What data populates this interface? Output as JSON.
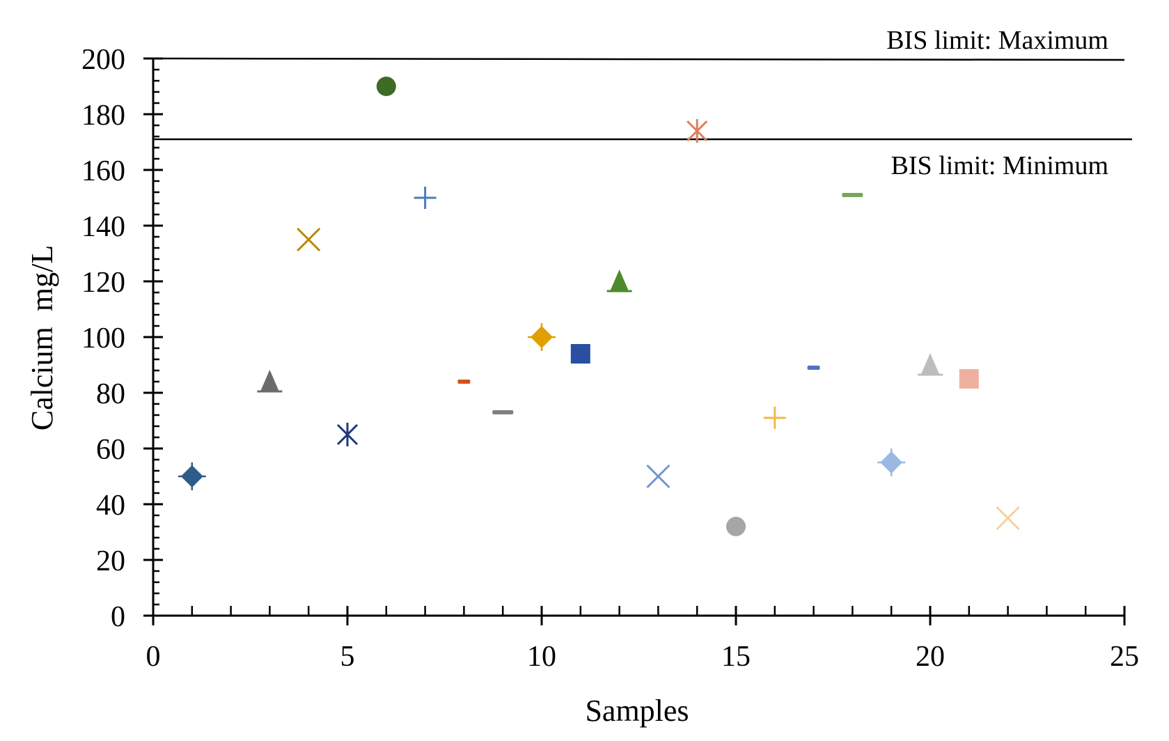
{
  "chart_data": {
    "type": "scatter",
    "xlabel": "Samples",
    "ylabel": "Calcium  mg/L",
    "xlim": [
      0,
      25
    ],
    "ylim": [
      0,
      200
    ],
    "x_ticks": [
      0,
      5,
      10,
      15,
      20,
      25
    ],
    "y_ticks": [
      0,
      20,
      40,
      60,
      80,
      100,
      120,
      140,
      160,
      180,
      200
    ],
    "x_tick_labels": [
      "0",
      "5",
      "10",
      "15",
      "20",
      "25"
    ],
    "y_tick_labels": [
      "0",
      "20",
      "40",
      "60",
      "80",
      "100",
      "120",
      "140",
      "160",
      "180",
      "200"
    ],
    "grid": false,
    "legend": "none",
    "reference_lines": [
      {
        "label": "BIS limit: Maximum",
        "y": 200
      },
      {
        "label": "BIS limit: Minimum",
        "y": 171
      }
    ],
    "points": [
      {
        "x": 1,
        "y": 50,
        "marker": "diamond",
        "color": "#2e5c8a"
      },
      {
        "x": 3,
        "y": 84,
        "marker": "triangle",
        "color": "#6b6b6b"
      },
      {
        "x": 4,
        "y": 135,
        "marker": "x",
        "color": "#b8860b"
      },
      {
        "x": 5,
        "y": 65,
        "marker": "asterisk",
        "color": "#1f3a7a"
      },
      {
        "x": 6,
        "y": 190,
        "marker": "circle",
        "color": "#3e6b25"
      },
      {
        "x": 7,
        "y": 150,
        "marker": "plus",
        "color": "#4a7ebb"
      },
      {
        "x": 8,
        "y": 84,
        "marker": "dash",
        "color": "#d2541b"
      },
      {
        "x": 9,
        "y": 73,
        "marker": "dash",
        "color": "#808080"
      },
      {
        "x": 10,
        "y": 100,
        "marker": "diamond",
        "color": "#e0a000"
      },
      {
        "x": 11,
        "y": 94,
        "marker": "square",
        "color": "#2a4fa0"
      },
      {
        "x": 12,
        "y": 120,
        "marker": "triangle",
        "color": "#4e8a2c"
      },
      {
        "x": 13,
        "y": 50,
        "marker": "x",
        "color": "#6f97cf"
      },
      {
        "x": 14,
        "y": 174,
        "marker": "asterisk",
        "color": "#e07b5a"
      },
      {
        "x": 15,
        "y": 32,
        "marker": "circle",
        "color": "#a6a6a6"
      },
      {
        "x": 16,
        "y": 71,
        "marker": "plus",
        "color": "#f2b94a"
      },
      {
        "x": 17,
        "y": 89,
        "marker": "dash",
        "color": "#5470c0"
      },
      {
        "x": 18,
        "y": 151,
        "marker": "dash",
        "color": "#78a55a"
      },
      {
        "x": 19,
        "y": 55,
        "marker": "diamond",
        "color": "#9bb8e3"
      },
      {
        "x": 20,
        "y": 90,
        "marker": "triangle",
        "color": "#bdbdbd"
      },
      {
        "x": 21,
        "y": 85,
        "marker": "square",
        "color": "#f0b0a0"
      },
      {
        "x": 22,
        "y": 35,
        "marker": "x",
        "color": "#f3d29a"
      }
    ]
  }
}
